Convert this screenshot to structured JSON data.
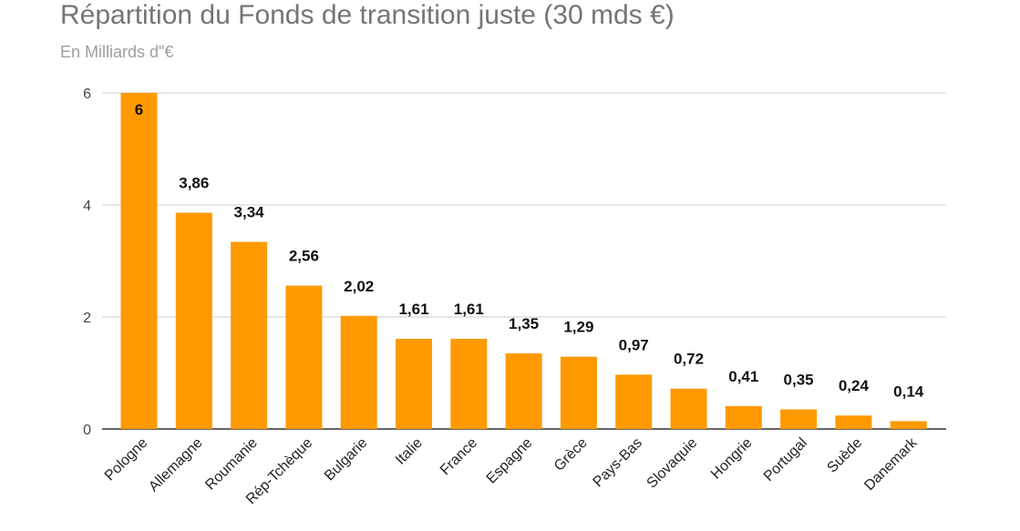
{
  "chart_data": {
    "type": "bar",
    "title": "Répartition du Fonds de transition juste (30 mds €)",
    "subtitle": "En Milliards d\"€",
    "categories": [
      "Pologne",
      "Allemagne",
      "Roumanie",
      "Rép-Tchèque",
      "Bulgarie",
      "Italie",
      "France",
      "Espagne",
      "Grèce",
      "Pays-Bas",
      "Slovaquie",
      "Hongrie",
      "Portugal",
      "Suède",
      "Danemark"
    ],
    "values": [
      6,
      3.86,
      3.34,
      2.56,
      2.02,
      1.61,
      1.61,
      1.35,
      1.29,
      0.97,
      0.72,
      0.41,
      0.35,
      0.24,
      0.14
    ],
    "data_labels": [
      "6",
      "3,86",
      "3,34",
      "2,56",
      "2,02",
      "1,61",
      "1,61",
      "1,35",
      "1,29",
      "0,97",
      "0,72",
      "0,41",
      "0,35",
      "0,24",
      "0,14"
    ],
    "ylim": [
      0,
      6
    ],
    "yticks": [
      0,
      2,
      4,
      6
    ],
    "ytick_labels": [
      "0",
      "2",
      "4",
      "6"
    ],
    "xlabel": "",
    "ylabel": "",
    "grid": true,
    "bar_color": "#ff9900",
    "legend": "none"
  }
}
